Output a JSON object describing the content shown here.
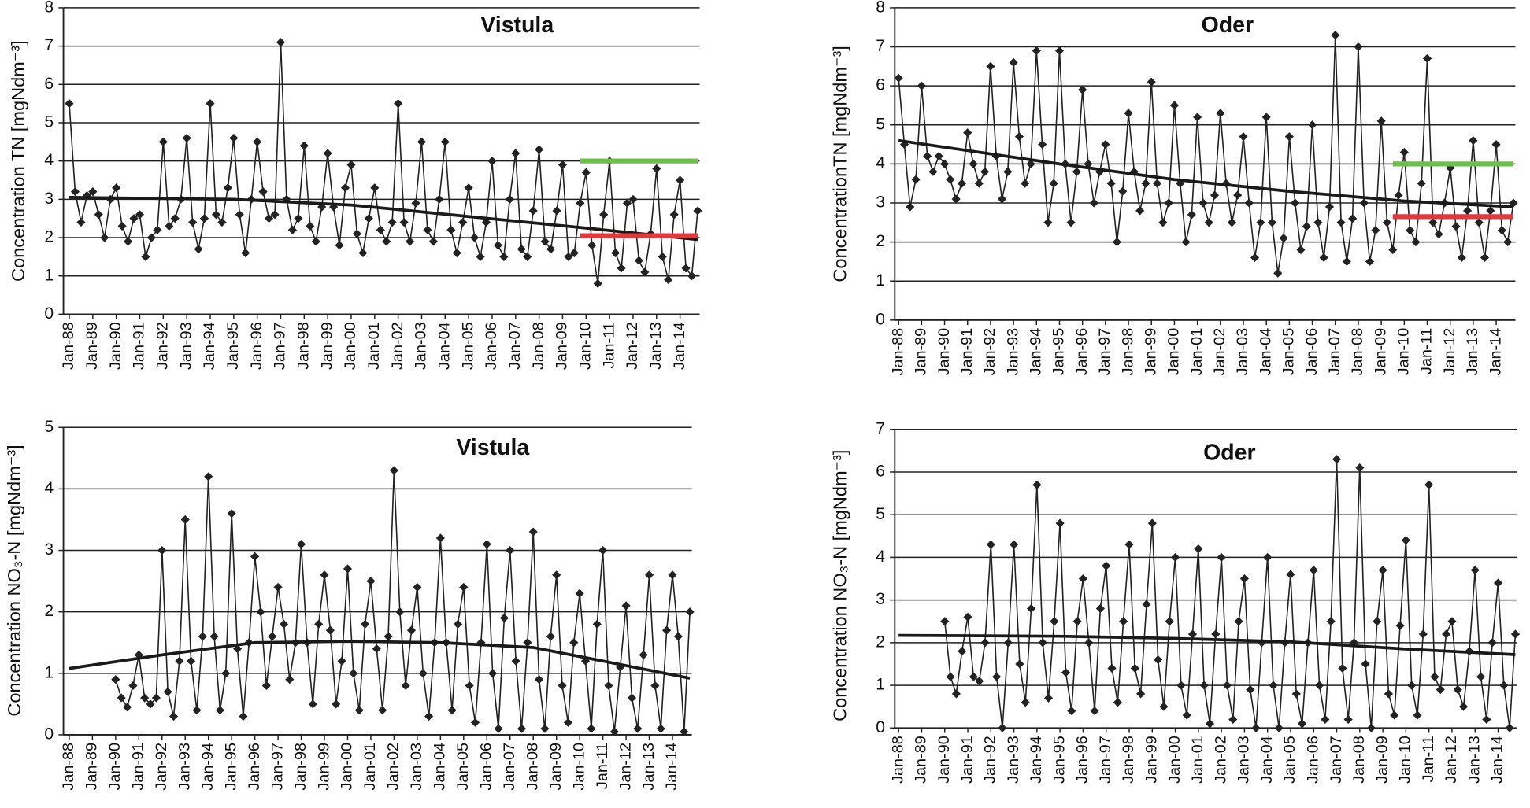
{
  "chart_data": [
    {
      "type": "line",
      "title": "Vistula",
      "y_label": "Concentration TN [mgNdm⁻³]",
      "grid": true,
      "color": "#222222",
      "ylim": [
        0,
        8
      ],
      "yticks": [
        0,
        1,
        2,
        3,
        4,
        5,
        6,
        7,
        8
      ],
      "xlim": [
        "Oct-87",
        "Nov-14"
      ],
      "xticks": [
        "Jan-88",
        "Jan-89",
        "Jan-90",
        "Jan-91",
        "Jan-92",
        "Jan-93",
        "Jan-94",
        "Jan-95",
        "Jan-96",
        "Jan-97",
        "Jan-98",
        "Jan-99",
        "Jan-00",
        "Jan-01",
        "Jan-02",
        "Jan-03",
        "Jan-04",
        "Jan-05",
        "Jan-06",
        "Jan-07",
        "Jan-08",
        "Jan-09",
        "Jan-10",
        "Jan-11",
        "Jan-12",
        "Jan-13",
        "Jan-14"
      ],
      "x": [
        "Jan-88",
        "Apr-88",
        "Jul-88",
        "Oct-88",
        "Jan-89",
        "Apr-89",
        "Jul-89",
        "Oct-89",
        "Jan-90",
        "Apr-90",
        "Jul-90",
        "Oct-90",
        "Jan-91",
        "Apr-91",
        "Jul-91",
        "Oct-91",
        "Jan-92",
        "Apr-92",
        "Jul-92",
        "Oct-92",
        "Jan-93",
        "Apr-93",
        "Jul-93",
        "Oct-93",
        "Jan-94",
        "Apr-94",
        "Jul-94",
        "Oct-94",
        "Jan-95",
        "Apr-95",
        "Jul-95",
        "Oct-95",
        "Jan-96",
        "Apr-96",
        "Jul-96",
        "Oct-96",
        "Jan-97",
        "Apr-97",
        "Jul-97",
        "Oct-97",
        "Jan-98",
        "Apr-98",
        "Jul-98",
        "Oct-98",
        "Jan-99",
        "Apr-99",
        "Jul-99",
        "Oct-99",
        "Jan-00",
        "Apr-00",
        "Jul-00",
        "Oct-00",
        "Jan-01",
        "Apr-01",
        "Jul-01",
        "Oct-01",
        "Jan-02",
        "Apr-02",
        "Jul-02",
        "Oct-02",
        "Jan-03",
        "Apr-03",
        "Jul-03",
        "Oct-03",
        "Jan-04",
        "Apr-04",
        "Jul-04",
        "Oct-04",
        "Jan-05",
        "Apr-05",
        "Jul-05",
        "Oct-05",
        "Jan-06",
        "Apr-06",
        "Jul-06",
        "Oct-06",
        "Jan-07",
        "Apr-07",
        "Jul-07",
        "Oct-07",
        "Jan-08",
        "Apr-08",
        "Jul-08",
        "Oct-08",
        "Jan-09",
        "Apr-09",
        "Jul-09",
        "Oct-09",
        "Jan-10",
        "Apr-10",
        "Jul-10",
        "Oct-10",
        "Jan-11",
        "Apr-11",
        "Jul-11",
        "Oct-11",
        "Jan-12",
        "Apr-12",
        "Jul-12",
        "Oct-12",
        "Jan-13",
        "Apr-13",
        "Jul-13",
        "Oct-13",
        "Jan-14",
        "Apr-14",
        "Jul-14",
        "Oct-14"
      ],
      "values": [
        5.5,
        3.2,
        2.4,
        3.1,
        3.2,
        2.6,
        2.0,
        3.0,
        3.3,
        2.3,
        1.9,
        2.5,
        2.6,
        1.5,
        2.0,
        2.2,
        4.5,
        2.3,
        2.5,
        3.0,
        4.6,
        2.4,
        1.7,
        2.5,
        5.5,
        2.6,
        2.4,
        3.3,
        4.6,
        2.6,
        1.6,
        3.0,
        4.5,
        3.2,
        2.5,
        2.6,
        7.1,
        3.0,
        2.2,
        2.5,
        4.4,
        2.3,
        1.9,
        2.8,
        4.2,
        2.8,
        1.8,
        3.3,
        3.9,
        2.1,
        1.6,
        2.5,
        3.3,
        2.2,
        1.9,
        2.4,
        5.5,
        2.4,
        1.9,
        2.9,
        4.5,
        2.2,
        1.9,
        3.0,
        4.5,
        2.2,
        1.6,
        2.4,
        3.3,
        2.0,
        1.5,
        2.4,
        4.0,
        1.8,
        1.5,
        3.0,
        4.2,
        1.7,
        1.5,
        2.7,
        4.3,
        1.9,
        1.7,
        2.7,
        3.9,
        1.5,
        1.6,
        2.9,
        3.7,
        1.8,
        0.8,
        2.6,
        4.0,
        1.6,
        1.2,
        2.9,
        3.0,
        1.4,
        1.1,
        2.1,
        3.8,
        1.5,
        0.9,
        2.6,
        3.5,
        1.2,
        1.0,
        2.7
      ],
      "trend": {
        "color": "#1a1a1a",
        "x": [
          "Jan-88",
          "Jan-95",
          "Jan-00",
          "Jan-05",
          "Jan-10",
          "Oct-14"
        ],
        "values": [
          3.05,
          3.0,
          2.85,
          2.55,
          2.25,
          1.95
        ]
      },
      "reference_lines": [
        {
          "value": 4.0,
          "color": "#6cc04a",
          "x": [
            "Oct-09",
            "Oct-14"
          ]
        },
        {
          "value": 2.05,
          "color": "#e0393e",
          "x": [
            "Oct-09",
            "Oct-14"
          ]
        }
      ]
    },
    {
      "type": "line",
      "title": "Oder",
      "y_label": "ConcentrationTN [mgNdm⁻³]",
      "grid": true,
      "color": "#222222",
      "ylim": [
        0,
        8
      ],
      "yticks": [
        0,
        1,
        2,
        3,
        4,
        5,
        6,
        7,
        8
      ],
      "xlim": [
        "Nov-87",
        "Nov-14"
      ],
      "xticks": [
        "Jan-88",
        "Jan-89",
        "Jan-90",
        "Jan-91",
        "Jan-92",
        "Jan-93",
        "Jan-94",
        "Jan-95",
        "Jan-96",
        "Jan-97",
        "Jan-98",
        "Jan-99",
        "Jan-00",
        "Jan-01",
        "Jan-02",
        "Jan-03",
        "Jan-04",
        "Jan-05",
        "Jan-06",
        "Jan-07",
        "Jan-08",
        "Jan-09",
        "Jan-10",
        "Jan-11",
        "Jan-12",
        "Jan-13",
        "Jan-14"
      ],
      "x": [
        "Jan-88",
        "Apr-88",
        "Jul-88",
        "Oct-88",
        "Jan-89",
        "Apr-89",
        "Jul-89",
        "Oct-89",
        "Jan-90",
        "Apr-90",
        "Jul-90",
        "Oct-90",
        "Jan-91",
        "Apr-91",
        "Jul-91",
        "Oct-91",
        "Jan-92",
        "Apr-92",
        "Jul-92",
        "Oct-92",
        "Jan-93",
        "Apr-93",
        "Jul-93",
        "Oct-93",
        "Jan-94",
        "Apr-94",
        "Jul-94",
        "Oct-94",
        "Jan-95",
        "Apr-95",
        "Jul-95",
        "Oct-95",
        "Jan-96",
        "Apr-96",
        "Jul-96",
        "Oct-96",
        "Jan-97",
        "Apr-97",
        "Jul-97",
        "Oct-97",
        "Jan-98",
        "Apr-98",
        "Jul-98",
        "Oct-98",
        "Jan-99",
        "Apr-99",
        "Jul-99",
        "Oct-99",
        "Jan-00",
        "Apr-00",
        "Jul-00",
        "Oct-00",
        "Jan-01",
        "Apr-01",
        "Jul-01",
        "Oct-01",
        "Jan-02",
        "Apr-02",
        "Jul-02",
        "Oct-02",
        "Jan-03",
        "Apr-03",
        "Jul-03",
        "Oct-03",
        "Jan-04",
        "Apr-04",
        "Jul-04",
        "Oct-04",
        "Jan-05",
        "Apr-05",
        "Jul-05",
        "Oct-05",
        "Jan-06",
        "Apr-06",
        "Jul-06",
        "Oct-06",
        "Jan-07",
        "Apr-07",
        "Jul-07",
        "Oct-07",
        "Jan-08",
        "Apr-08",
        "Jul-08",
        "Oct-08",
        "Jan-09",
        "Apr-09",
        "Jul-09",
        "Oct-09",
        "Jan-10",
        "Apr-10",
        "Jul-10",
        "Oct-10",
        "Jan-11",
        "Apr-11",
        "Jul-11",
        "Oct-11",
        "Jan-12",
        "Apr-12",
        "Jul-12",
        "Oct-12",
        "Jan-13",
        "Apr-13",
        "Jul-13",
        "Oct-13",
        "Jan-14",
        "Apr-14",
        "Jul-14",
        "Oct-14"
      ],
      "values": [
        6.2,
        4.5,
        2.9,
        3.6,
        6.0,
        4.2,
        3.8,
        4.2,
        4.0,
        3.6,
        3.1,
        3.5,
        4.8,
        4.0,
        3.5,
        3.8,
        6.5,
        4.2,
        3.1,
        3.8,
        6.6,
        4.7,
        3.5,
        4.0,
        6.9,
        4.5,
        2.5,
        3.5,
        6.9,
        4.0,
        2.5,
        3.8,
        5.9,
        4.0,
        3.0,
        3.8,
        4.5,
        3.5,
        2.0,
        3.3,
        5.3,
        3.8,
        2.8,
        3.5,
        6.1,
        3.5,
        2.5,
        3.0,
        5.5,
        3.5,
        2.0,
        2.7,
        5.2,
        3.0,
        2.5,
        3.2,
        5.3,
        3.5,
        2.5,
        3.2,
        4.7,
        3.0,
        1.6,
        2.5,
        5.2,
        2.5,
        1.2,
        2.1,
        4.7,
        3.0,
        1.8,
        2.4,
        5.0,
        2.5,
        1.6,
        2.9,
        7.3,
        2.5,
        1.5,
        2.6,
        7.0,
        3.0,
        1.5,
        2.3,
        5.1,
        2.5,
        1.8,
        3.2,
        4.3,
        2.3,
        2.0,
        3.5,
        6.7,
        2.5,
        2.2,
        3.0,
        3.9,
        2.4,
        1.6,
        2.8,
        4.6,
        2.5,
        1.6,
        2.8,
        4.5,
        2.3,
        2.0,
        3.0
      ],
      "trend": {
        "color": "#1a1a1a",
        "x": [
          "Jan-88",
          "Jan-95",
          "Jan-00",
          "Jan-05",
          "Jan-10",
          "Oct-14"
        ],
        "values": [
          4.6,
          4.0,
          3.6,
          3.3,
          3.05,
          2.9
        ]
      },
      "reference_lines": [
        {
          "value": 4.0,
          "color": "#6cc04a",
          "x": [
            "Jul-09",
            "Oct-14"
          ]
        },
        {
          "value": 2.65,
          "color": "#e0393e",
          "x": [
            "Jul-09",
            "Oct-14"
          ]
        }
      ]
    },
    {
      "type": "line",
      "title": "Vistula",
      "y_label": "Concentration NO₃-N [mgNdm⁻³]",
      "grid": true,
      "color": "#222222",
      "ylim": [
        0,
        5
      ],
      "yticks": [
        0,
        1,
        2,
        3,
        4,
        5
      ],
      "xlim": [
        "Oct-87",
        "Nov-14"
      ],
      "xticks": [
        "Jan-88",
        "Jan-89",
        "Jan-90",
        "Jan-91",
        "Jan-92",
        "Jan-93",
        "Jan-94",
        "Jan-95",
        "Jan-96",
        "Jan-97",
        "Jan-98",
        "Jan-99",
        "Jan-00",
        "Jan-01",
        "Jan-02",
        "Jan-03",
        "Jan-04",
        "Jan-05",
        "Jan-06",
        "Jan-07",
        "Jan-08",
        "Jan-09",
        "Jan-10",
        "Jan-11",
        "Jan-12",
        "Jan-13",
        "Jan-14"
      ],
      "x": [
        "Jan-90",
        "Apr-90",
        "Jul-90",
        "Oct-90",
        "Jan-91",
        "Apr-91",
        "Jul-91",
        "Oct-91",
        "Jan-92",
        "Apr-92",
        "Jul-92",
        "Oct-92",
        "Jan-93",
        "Apr-93",
        "Jul-93",
        "Oct-93",
        "Jan-94",
        "Apr-94",
        "Jul-94",
        "Oct-94",
        "Jan-95",
        "Apr-95",
        "Jul-95",
        "Oct-95",
        "Jan-96",
        "Apr-96",
        "Jul-96",
        "Oct-96",
        "Jan-97",
        "Apr-97",
        "Jul-97",
        "Oct-97",
        "Jan-98",
        "Apr-98",
        "Jul-98",
        "Oct-98",
        "Jan-99",
        "Apr-99",
        "Jul-99",
        "Oct-99",
        "Jan-00",
        "Apr-00",
        "Jul-00",
        "Oct-00",
        "Jan-01",
        "Apr-01",
        "Jul-01",
        "Oct-01",
        "Jan-02",
        "Apr-02",
        "Jul-02",
        "Oct-02",
        "Jan-03",
        "Apr-03",
        "Jul-03",
        "Oct-03",
        "Jan-04",
        "Apr-04",
        "Jul-04",
        "Oct-04",
        "Jan-05",
        "Apr-05",
        "Jul-05",
        "Oct-05",
        "Jan-06",
        "Apr-06",
        "Jul-06",
        "Oct-06",
        "Jan-07",
        "Apr-07",
        "Jul-07",
        "Oct-07",
        "Jan-08",
        "Apr-08",
        "Jul-08",
        "Oct-08",
        "Jan-09",
        "Apr-09",
        "Jul-09",
        "Oct-09",
        "Jan-10",
        "Apr-10",
        "Jul-10",
        "Oct-10",
        "Jan-11",
        "Apr-11",
        "Jul-11",
        "Oct-11",
        "Jan-12",
        "Apr-12",
        "Jul-12",
        "Oct-12",
        "Jan-13",
        "Apr-13",
        "Jul-13",
        "Oct-13",
        "Jan-14",
        "Apr-14",
        "Jul-14",
        "Oct-14"
      ],
      "values": [
        0.9,
        0.6,
        0.45,
        0.8,
        1.3,
        0.6,
        0.5,
        0.6,
        3.0,
        0.7,
        0.3,
        1.2,
        3.5,
        1.2,
        0.4,
        1.6,
        4.2,
        1.6,
        0.4,
        1.0,
        3.6,
        1.4,
        0.3,
        1.5,
        2.9,
        2.0,
        0.8,
        1.6,
        2.4,
        1.8,
        0.9,
        1.5,
        3.1,
        1.5,
        0.5,
        1.8,
        2.6,
        1.7,
        0.5,
        1.2,
        2.7,
        1.0,
        0.4,
        1.8,
        2.5,
        1.4,
        0.4,
        1.6,
        4.3,
        2.0,
        0.8,
        1.7,
        2.4,
        1.0,
        0.3,
        1.5,
        3.2,
        1.5,
        0.4,
        1.8,
        2.4,
        0.8,
        0.2,
        1.5,
        3.1,
        1.0,
        0.1,
        1.9,
        3.0,
        1.2,
        0.1,
        1.5,
        3.3,
        0.9,
        0.1,
        1.6,
        2.6,
        0.8,
        0.2,
        1.5,
        2.3,
        1.2,
        0.1,
        1.8,
        3.0,
        0.8,
        0.05,
        1.1,
        2.1,
        0.6,
        0.1,
        1.3,
        2.6,
        0.8,
        0.1,
        1.7,
        2.6,
        1.6,
        0.05,
        2.0
      ],
      "trend": {
        "color": "#1a1a1a",
        "x": [
          "Jan-88",
          "Jan-92",
          "Jan-96",
          "Jan-00",
          "Jan-04",
          "Jan-08",
          "Jan-11",
          "Oct-14"
        ],
        "values": [
          1.08,
          1.3,
          1.5,
          1.52,
          1.5,
          1.42,
          1.2,
          0.92
        ]
      }
    },
    {
      "type": "line",
      "title": "Oder",
      "y_label": "Concentration NO₃-N [mgNdm⁻³]",
      "grid": true,
      "color": "#222222",
      "ylim": [
        0,
        7
      ],
      "yticks": [
        0,
        1,
        2,
        3,
        4,
        5,
        6,
        7
      ],
      "xlim": [
        "Nov-87",
        "Nov-14"
      ],
      "xticks": [
        "Jan-88",
        "Jan-89",
        "Jan-90",
        "Jan-91",
        "Jan-92",
        "Jan-93",
        "Jan-94",
        "Jan-95",
        "Jan-96",
        "Jan-97",
        "Jan-98",
        "Jan-99",
        "Jan-00",
        "Jan-01",
        "Jan-02",
        "Jan-03",
        "Jan-04",
        "Jan-05",
        "Jan-06",
        "Jan-07",
        "Jan-08",
        "Jan-09",
        "Jan-10",
        "Jan-11",
        "Jan-12",
        "Jan-13",
        "Jan-14"
      ],
      "x": [
        "Jan-90",
        "Apr-90",
        "Jul-90",
        "Oct-90",
        "Jan-91",
        "Apr-91",
        "Jul-91",
        "Oct-91",
        "Jan-92",
        "Apr-92",
        "Jul-92",
        "Oct-92",
        "Jan-93",
        "Apr-93",
        "Jul-93",
        "Oct-93",
        "Jan-94",
        "Apr-94",
        "Jul-94",
        "Oct-94",
        "Jan-95",
        "Apr-95",
        "Jul-95",
        "Oct-95",
        "Jan-96",
        "Apr-96",
        "Jul-96",
        "Oct-96",
        "Jan-97",
        "Apr-97",
        "Jul-97",
        "Oct-97",
        "Jan-98",
        "Apr-98",
        "Jul-98",
        "Oct-98",
        "Jan-99",
        "Apr-99",
        "Jul-99",
        "Oct-99",
        "Jan-00",
        "Apr-00",
        "Jul-00",
        "Oct-00",
        "Jan-01",
        "Apr-01",
        "Jul-01",
        "Oct-01",
        "Jan-02",
        "Apr-02",
        "Jul-02",
        "Oct-02",
        "Jan-03",
        "Apr-03",
        "Jul-03",
        "Oct-03",
        "Jan-04",
        "Apr-04",
        "Jul-04",
        "Oct-04",
        "Jan-05",
        "Apr-05",
        "Jul-05",
        "Oct-05",
        "Jan-06",
        "Apr-06",
        "Jul-06",
        "Oct-06",
        "Jan-07",
        "Apr-07",
        "Jul-07",
        "Oct-07",
        "Jan-08",
        "Apr-08",
        "Jul-08",
        "Oct-08",
        "Jan-09",
        "Apr-09",
        "Jul-09",
        "Oct-09",
        "Jan-10",
        "Apr-10",
        "Jul-10",
        "Oct-10",
        "Jan-11",
        "Apr-11",
        "Jul-11",
        "Oct-11",
        "Jan-12",
        "Apr-12",
        "Jul-12",
        "Oct-12",
        "Jan-13",
        "Apr-13",
        "Jul-13",
        "Oct-13",
        "Jan-14",
        "Apr-14",
        "Jul-14",
        "Oct-14"
      ],
      "values": [
        2.5,
        1.2,
        0.8,
        1.8,
        2.6,
        1.2,
        1.1,
        2.0,
        4.3,
        1.2,
        0.0,
        2.0,
        4.3,
        1.5,
        0.6,
        2.8,
        5.7,
        2.0,
        0.7,
        2.5,
        4.8,
        1.3,
        0.4,
        2.5,
        3.5,
        2.0,
        0.4,
        2.8,
        3.8,
        1.4,
        0.6,
        2.5,
        4.3,
        1.4,
        0.8,
        2.9,
        4.8,
        1.6,
        0.5,
        2.5,
        4.0,
        1.0,
        0.3,
        2.2,
        4.2,
        1.0,
        0.1,
        2.2,
        4.0,
        1.0,
        0.2,
        2.5,
        3.5,
        0.9,
        0.0,
        2.0,
        4.0,
        1.0,
        0.0,
        2.0,
        3.6,
        0.8,
        0.1,
        2.0,
        3.7,
        1.0,
        0.2,
        2.5,
        6.3,
        1.4,
        0.2,
        2.0,
        6.1,
        1.5,
        0.0,
        2.5,
        3.7,
        0.8,
        0.3,
        2.4,
        4.4,
        1.0,
        0.3,
        2.2,
        5.7,
        1.2,
        0.9,
        2.2,
        2.5,
        0.9,
        0.5,
        1.8,
        3.7,
        1.2,
        0.2,
        2.0,
        3.4,
        1.0,
        0.0,
        2.2
      ],
      "trend": {
        "color": "#1a1a1a",
        "x": [
          "Jan-88",
          "Jan-95",
          "Jan-00",
          "Jan-05",
          "Jan-10",
          "Oct-14"
        ],
        "values": [
          2.17,
          2.15,
          2.1,
          2.02,
          1.85,
          1.72
        ]
      }
    }
  ]
}
